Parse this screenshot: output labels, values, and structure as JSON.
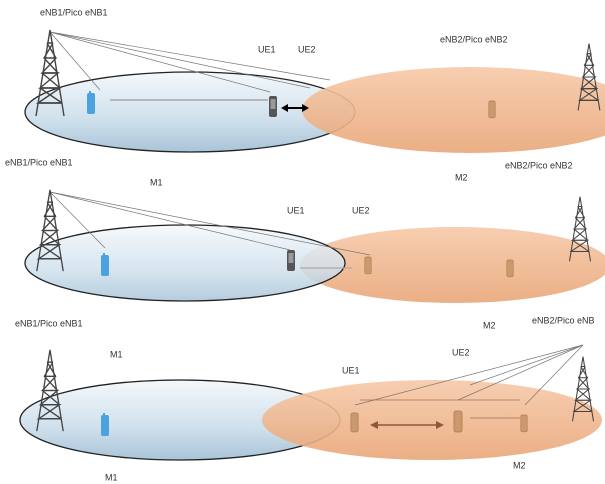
{
  "panels": [
    {
      "labels": [
        "eNB1/Pico eNB1",
        "UE1",
        "UE2",
        "eNB2/Pico eNB2"
      ]
    },
    {
      "labels": [
        "eNB1/Pico eNB1",
        "eNB2/Pico eNB2",
        "M1",
        "M2",
        "UE1",
        "UE2"
      ]
    },
    {
      "labels": [
        "eNB1/Pico eNB1",
        "M2",
        "eNB2/Pico eNB",
        "M1",
        "UE2",
        "UE1",
        "M1",
        "M2"
      ]
    }
  ]
}
